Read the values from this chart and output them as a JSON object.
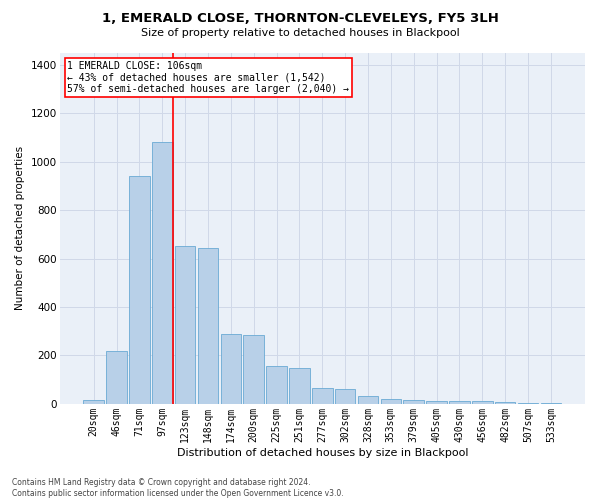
{
  "title": "1, EMERALD CLOSE, THORNTON-CLEVELEYS, FY5 3LH",
  "subtitle": "Size of property relative to detached houses in Blackpool",
  "xlabel": "Distribution of detached houses by size in Blackpool",
  "ylabel": "Number of detached properties",
  "footnote": "Contains HM Land Registry data © Crown copyright and database right 2024.\nContains public sector information licensed under the Open Government Licence v3.0.",
  "categories": [
    "20sqm",
    "46sqm",
    "71sqm",
    "97sqm",
    "123sqm",
    "148sqm",
    "174sqm",
    "200sqm",
    "225sqm",
    "251sqm",
    "277sqm",
    "302sqm",
    "328sqm",
    "353sqm",
    "379sqm",
    "405sqm",
    "430sqm",
    "456sqm",
    "482sqm",
    "507sqm",
    "533sqm"
  ],
  "values": [
    15,
    220,
    940,
    1080,
    650,
    645,
    290,
    285,
    155,
    150,
    65,
    60,
    33,
    20,
    15,
    12,
    10,
    10,
    8,
    5,
    2
  ],
  "bar_color": "#b8d0e8",
  "bar_edge_color": "#6aaad4",
  "grid_color": "#d0d8e8",
  "background_color": "#eaf0f8",
  "property_label": "1 EMERALD CLOSE: 106sqm",
  "annotation_line1": "← 43% of detached houses are smaller (1,542)",
  "annotation_line2": "57% of semi-detached houses are larger (2,040) →",
  "ylim": [
    0,
    1450
  ],
  "yticks": [
    0,
    200,
    400,
    600,
    800,
    1000,
    1200,
    1400
  ],
  "title_fontsize": 9.5,
  "subtitle_fontsize": 8,
  "ylabel_fontsize": 7.5,
  "xlabel_fontsize": 8,
  "tick_fontsize": 7,
  "footnote_fontsize": 5.5,
  "annotation_fontsize": 7
}
